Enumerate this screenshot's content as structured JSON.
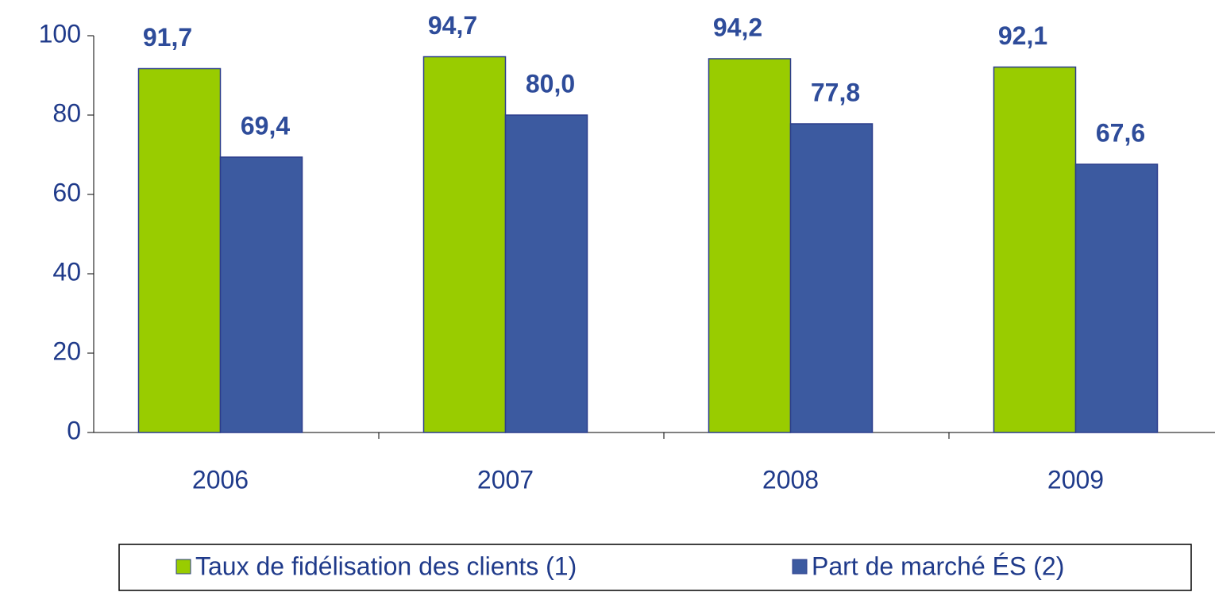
{
  "chart_data": {
    "type": "bar",
    "categories": [
      "2006",
      "2007",
      "2008",
      "2009"
    ],
    "series": [
      {
        "name": "Taux de fidélisation des clients (1)",
        "color": "#99cc00",
        "values": [
          91.7,
          94.7,
          94.2,
          92.1
        ],
        "value_labels": [
          "91,7",
          "94,7",
          "94,2",
          "92,1"
        ]
      },
      {
        "name": "Part de marché ÉS (2)",
        "color": "#3c5aa0",
        "values": [
          69.4,
          80.0,
          77.8,
          67.6
        ],
        "value_labels": [
          "69,4",
          "80,0",
          "77,8",
          "67,6"
        ]
      }
    ],
    "ylim": [
      0,
      100
    ],
    "yticks": [
      0,
      20,
      40,
      60,
      80,
      100
    ],
    "grid": false,
    "legend": "bottom"
  }
}
